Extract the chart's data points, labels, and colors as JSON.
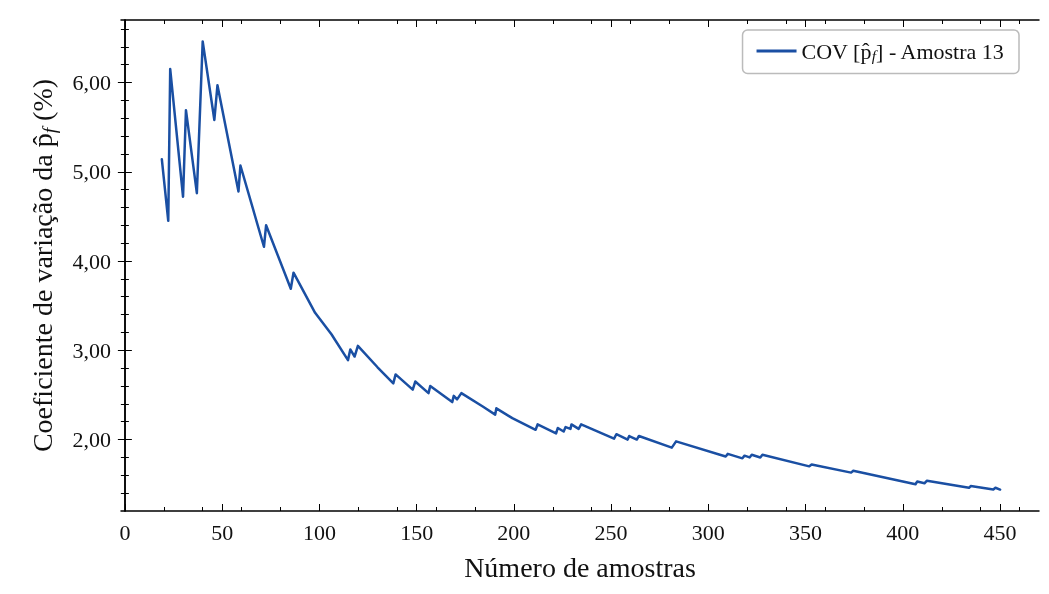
{
  "chart_data": {
    "type": "line",
    "xlabel": "Número de amostras",
    "ylabel": "Coeficiente de variação da p̂$_{f}$ (%)",
    "xlim": [
      -2,
      470
    ],
    "ylim": [
      1.2,
      6.7
    ],
    "xticks": [
      0,
      50,
      100,
      150,
      200,
      250,
      300,
      350,
      400,
      450
    ],
    "yticks": [
      {
        "value": 2,
        "label": "2,00"
      },
      {
        "value": 3,
        "label": "3,00"
      },
      {
        "value": 4,
        "label": "4,00"
      },
      {
        "value": 5,
        "label": "5,00"
      },
      {
        "value": 6,
        "label": "6,00"
      }
    ],
    "legend": "top right",
    "grid": false,
    "series": [
      {
        "name": "COV [p̂$_{f}$] - Amostra 13",
        "color": "#1a4fa3",
        "x": [
          19,
          22.3,
          23.3,
          29.9,
          31.4,
          37,
          40,
          46,
          47.6,
          58.4,
          59.4,
          71.5,
          72.6,
          85.3,
          86.7,
          97.8,
          106.2,
          114.7,
          115.9,
          118.1,
          119.8,
          129.9,
          138,
          139.2,
          148,
          149.3,
          156.1,
          157,
          168.3,
          169.1,
          170.8,
          173,
          184,
          190.4,
          191,
          199.2,
          211.2,
          212.2,
          221.7,
          222.6,
          225.6,
          226.6,
          229.1,
          229.6,
          233.3,
          234.6,
          251.5,
          252.7,
          258.5,
          259.3,
          263.2,
          264.3,
          281.2,
          283.4,
          308.9,
          310,
          317.5,
          318.6,
          321.2,
          322.3,
          326.7,
          327.8,
          351.9,
          353.1,
          373.4,
          374.5,
          406.5,
          407.4,
          411.1,
          412.4,
          434,
          434.9,
          446.5,
          447.6,
          450
        ],
        "values": [
          5.14,
          4.45,
          6.15,
          4.72,
          5.69,
          4.76,
          6.46,
          5.58,
          5.97,
          4.78,
          5.07,
          4.16,
          4.4,
          3.69,
          3.87,
          3.42,
          3.18,
          2.89,
          3.01,
          2.93,
          3.05,
          2.81,
          2.63,
          2.73,
          2.56,
          2.65,
          2.52,
          2.6,
          2.42,
          2.49,
          2.45,
          2.52,
          2.37,
          2.28,
          2.35,
          2.24,
          2.11,
          2.17,
          2.07,
          2.13,
          2.09,
          2.14,
          2.12,
          2.17,
          2.12,
          2.17,
          2.01,
          2.06,
          2.0,
          2.04,
          2.0,
          2.04,
          1.91,
          1.98,
          1.81,
          1.84,
          1.79,
          1.82,
          1.8,
          1.83,
          1.8,
          1.83,
          1.7,
          1.72,
          1.63,
          1.65,
          1.5,
          1.53,
          1.51,
          1.54,
          1.46,
          1.48,
          1.44,
          1.46,
          1.44
        ]
      }
    ]
  }
}
